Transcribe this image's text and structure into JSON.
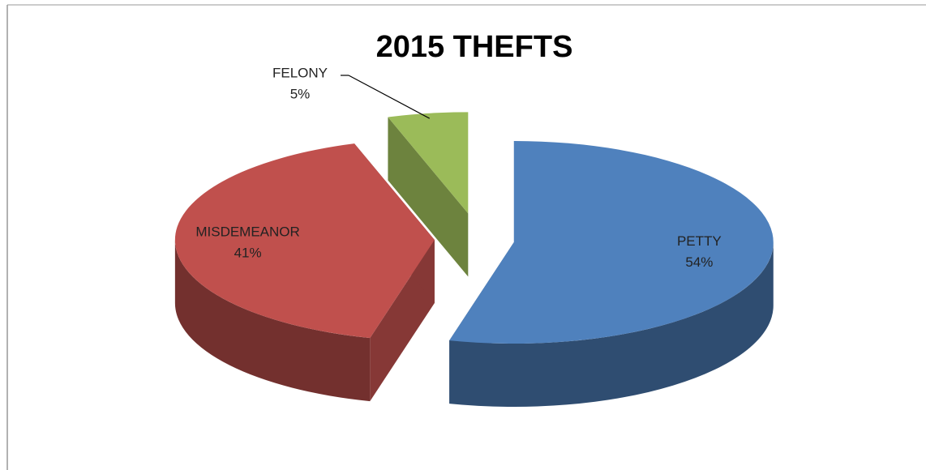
{
  "chart_data": {
    "type": "pie",
    "title": "2015 THEFTS",
    "categories": [
      "PETTY",
      "MISDEMEANOR",
      "FELONY"
    ],
    "values": [
      54,
      41,
      5
    ],
    "value_labels": [
      "54%",
      "41%",
      "5%"
    ],
    "colors": [
      "#4f81bd",
      "#c0504d",
      "#9bbb59"
    ]
  }
}
